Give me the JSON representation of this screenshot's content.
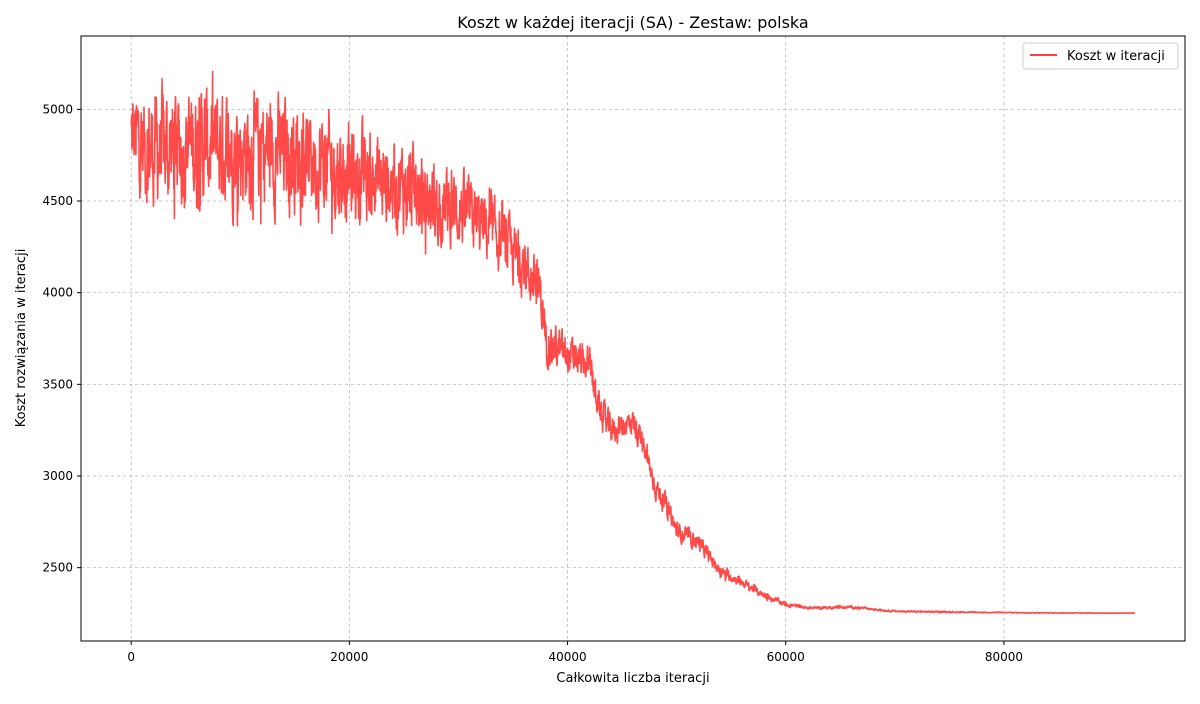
{
  "chart_data": {
    "type": "line",
    "title": "Koszt w każdej iteracji (SA) - Zestaw: polska",
    "xlabel": "Całkowita liczba iteracji",
    "ylabel": "Koszt rozwiązania w iteracji",
    "xlim": [
      -4600,
      96600
    ],
    "ylim": [
      2100,
      5400
    ],
    "xticks": [
      0,
      20000,
      40000,
      60000,
      80000
    ],
    "yticks": [
      2500,
      3000,
      3500,
      4000,
      4500,
      5000
    ],
    "xtick_labels": [
      "0",
      "20000",
      "40000",
      "60000",
      "80000"
    ],
    "ytick_labels": [
      "2500",
      "3000",
      "3500",
      "4000",
      "4500",
      "5000"
    ],
    "grid": true,
    "legend_position": "top-right",
    "series": [
      {
        "name": "Koszt w iteracji",
        "color": "#ff4040",
        "envelope": {
          "x": [
            0,
            2000,
            5000,
            10000,
            15000,
            20000,
            22000,
            25000,
            27000,
            30000,
            32000,
            34000,
            36000,
            37500,
            38000,
            40000,
            42000,
            43000,
            44000,
            46000,
            47000,
            48000,
            49000,
            50000,
            52000,
            54000,
            56000,
            58000,
            60000,
            62000,
            66000,
            70000,
            75000,
            80000,
            85000,
            92000
          ],
          "center": [
            4850,
            4780,
            4800,
            4780,
            4760,
            4650,
            4620,
            4580,
            4500,
            4450,
            4380,
            4280,
            4150,
            4000,
            3750,
            3650,
            3600,
            3350,
            3250,
            3300,
            3150,
            2950,
            2850,
            2700,
            2640,
            2480,
            2420,
            2350,
            2300,
            2280,
            2285,
            2262,
            2258,
            2255,
            2253,
            2252
          ],
          "amplitude": [
            220,
            260,
            260,
            260,
            240,
            220,
            200,
            200,
            180,
            160,
            150,
            140,
            130,
            120,
            100,
            90,
            80,
            70,
            65,
            60,
            55,
            50,
            45,
            40,
            35,
            25,
            20,
            15,
            10,
            6,
            6,
            4,
            3,
            2,
            1,
            1
          ]
        }
      }
    ]
  }
}
